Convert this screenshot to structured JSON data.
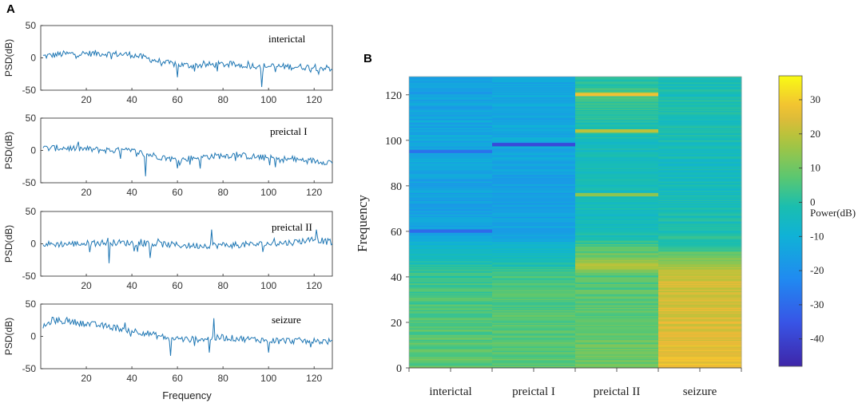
{
  "panel_a_label": "A",
  "panel_b_label": "B",
  "chart_data": [
    {
      "type": "line",
      "panel": "A",
      "title": "",
      "xlabel": "Frequency",
      "xlim": [
        0,
        128
      ],
      "xticks": [
        20,
        40,
        60,
        80,
        100,
        120
      ],
      "ylim": [
        -50,
        50
      ],
      "yticks": [
        50,
        0,
        -50
      ],
      "subplots": [
        {
          "annotation": "interictal",
          "ylabel": "PSD(dB)",
          "trend_x": [
            0,
            10,
            25,
            40,
            48,
            55,
            65,
            80,
            100,
            115,
            128
          ],
          "trend_y": [
            2,
            6,
            7,
            5,
            -2,
            -8,
            -12,
            -10,
            -13,
            -14,
            -16
          ]
        },
        {
          "annotation": "preictal I",
          "ylabel": "PSD(dB)",
          "trend_x": [
            0,
            10,
            25,
            40,
            50,
            60,
            70,
            85,
            100,
            115,
            128
          ],
          "trend_y": [
            3,
            4,
            1,
            -1,
            -8,
            -15,
            -10,
            -7,
            -12,
            -15,
            -18
          ]
        },
        {
          "annotation": "preictal II",
          "ylabel": "PSD(dB)",
          "trend_x": [
            0,
            15,
            30,
            45,
            55,
            65,
            80,
            95,
            110,
            120,
            128
          ],
          "trend_y": [
            -1,
            0,
            2,
            1,
            -1,
            -3,
            -2,
            -1,
            2,
            7,
            2
          ]
        },
        {
          "annotation": "seizure",
          "ylabel": "PSD(dB)",
          "trend_x": [
            0,
            5,
            15,
            30,
            45,
            55,
            65,
            80,
            100,
            115,
            128
          ],
          "trend_y": [
            10,
            25,
            22,
            15,
            6,
            -2,
            -5,
            -2,
            -6,
            -7,
            -8
          ]
        }
      ]
    },
    {
      "type": "heatmap",
      "panel": "B",
      "title": "",
      "xlabel": "",
      "ylabel": "Frequency",
      "categories": [
        "interictal",
        "preictal I",
        "preictal II",
        "seizure"
      ],
      "ylim": [
        0,
        128
      ],
      "yticks": [
        0,
        20,
        40,
        60,
        80,
        100,
        120
      ],
      "colorbar": {
        "label": "Power(dB)",
        "range": [
          -48,
          37
        ],
        "ticks": [
          30,
          20,
          10,
          0,
          -10,
          -20,
          -30,
          -40
        ]
      },
      "base_power": [
        {
          "y": [
            0,
            20,
            40,
            60,
            80,
            100,
            128
          ],
          "power": [
            8,
            6,
            3,
            -14,
            -15,
            -13,
            -16
          ]
        },
        {
          "y": [
            0,
            20,
            40,
            60,
            80,
            100,
            128
          ],
          "power": [
            7,
            6,
            4,
            -15,
            -16,
            -13,
            -14
          ]
        },
        {
          "y": [
            0,
            20,
            40,
            44,
            60,
            80,
            100,
            120,
            128
          ],
          "power": [
            10,
            8,
            6,
            18,
            -5,
            -4,
            -3,
            5,
            -2
          ]
        },
        {
          "y": [
            0,
            20,
            40,
            55,
            70,
            90,
            110,
            128
          ],
          "power": [
            26,
            24,
            22,
            0,
            -3,
            -4,
            -2,
            -3
          ]
        }
      ],
      "bright_bands": [
        {
          "category": "preictal II",
          "y": 120,
          "power": 28
        },
        {
          "category": "preictal II",
          "y": 104,
          "power": 20
        },
        {
          "category": "preictal II",
          "y": 76,
          "power": 14
        },
        {
          "category": "preictal II",
          "y": 44,
          "power": 18
        },
        {
          "category": "interictal",
          "y": 60,
          "power": -30
        },
        {
          "category": "interictal",
          "y": 95,
          "power": -28
        },
        {
          "category": "preictal I",
          "y": 98,
          "power": -38
        }
      ]
    }
  ]
}
